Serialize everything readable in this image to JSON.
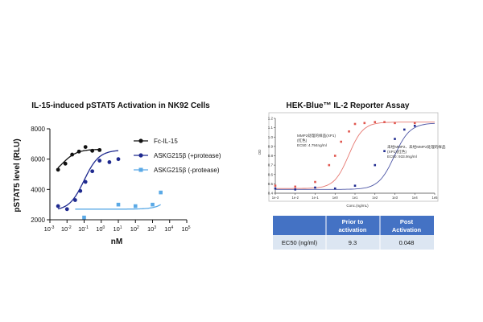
{
  "left_chart": {
    "title": "IL-15-induced pSTAT5 Activation in NK92 Cells",
    "ylabel": "pSTAT5 level (RLU)",
    "xlabel": "nM",
    "y_ticks": [
      "2000",
      "4000",
      "6000",
      "8000"
    ],
    "x_tick_mantissa": "10",
    "x_tick_exponents": [
      "-3",
      "-2",
      "-1",
      "0",
      "1",
      "2",
      "3",
      "4",
      "5"
    ]
  },
  "right_chart": {
    "title": "HEK-Blue™ IL-2 Reporter Assay",
    "ylabel": "OD",
    "xlabel": "Conc.(ng/mL)",
    "y_ticks": [
      "1.2",
      "1.1",
      "1.0",
      "0.9",
      "0.8",
      "0.7",
      "0.6",
      "0.5",
      "0.4"
    ],
    "x_ticks": [
      "1e-3",
      "1e-2",
      "1e-1",
      "1e0",
      "1e1",
      "1e2",
      "1e3",
      "1e4",
      "1e5"
    ],
    "annotation_red": [
      "MMP2处理的样品(XP1)",
      "(红色)",
      "EC50: 4.794ng/ml"
    ],
    "annotation_blue": [
      "未经MMP2、未经MMP2处理的样品",
      "(XP1)(红色)",
      "EC50: 933.9ng/ml"
    ]
  },
  "table": {
    "headers": [
      "",
      "Prior to activation",
      "Post Activation"
    ],
    "row_label": "EC50 (ng/ml)",
    "values": [
      "9.3",
      "0.048"
    ],
    "header_color": "#4472c4",
    "row_color": "#dce6f2"
  },
  "chart_data": [
    {
      "type": "scatter",
      "title": "IL-15-induced pSTAT5 Activation in NK92 Cells",
      "xlabel": "nM",
      "ylabel": "pSTAT5 level (RLU)",
      "x_scale": "log",
      "xlim": [
        0.001,
        100000
      ],
      "ylim": [
        2000,
        8000
      ],
      "legend_position": "right",
      "series": [
        {
          "name": "Fc-IL-15",
          "color": "#111111",
          "x": [
            0.003,
            0.008,
            0.02,
            0.05,
            0.12,
            0.3,
            0.8
          ],
          "y": [
            5300,
            5700,
            6300,
            6500,
            6800,
            6550,
            6600
          ],
          "fit": {
            "bottom": 4700,
            "top": 6650,
            "ec50": 0.005,
            "hill": 1.0,
            "xmin": 0.003,
            "xmax": 1.0
          }
        },
        {
          "name": "ASKG215β (+protease)",
          "color": "#1f2a8f",
          "x": [
            0.003,
            0.01,
            0.03,
            0.06,
            0.12,
            0.3,
            0.8,
            3,
            10
          ],
          "y": [
            2900,
            2700,
            3300,
            3900,
            4500,
            5200,
            5900,
            5800,
            6000
          ],
          "fit": {
            "bottom": 2600,
            "top": 6600,
            "ec50": 0.1,
            "hill": 1.0,
            "xmin": 0.003,
            "xmax": 10
          }
        },
        {
          "name": "ASKG215β (-protease)",
          "color": "#5aa9e6",
          "x": [
            0.1,
            10,
            100,
            1000,
            3000
          ],
          "y": [
            2150,
            3000,
            2900,
            3000,
            3800
          ],
          "fit": {
            "bottom": 2700,
            "top": 8000,
            "ec50": 50000,
            "hill": 1.0,
            "xmin": 0.03,
            "xmax": 3000
          }
        }
      ]
    },
    {
      "type": "scatter",
      "title": "HEK-Blue™ IL-2 Reporter Assay",
      "xlabel": "Conc.(ng/mL)",
      "ylabel": "OD",
      "x_scale": "log",
      "xlim": [
        0.001,
        100000
      ],
      "ylim": [
        0.4,
        1.2
      ],
      "series": [
        {
          "name": "MMP2处理的样品(XP1)",
          "color": "#e0564e",
          "x": [
            0.001,
            0.01,
            0.1,
            0.5,
            1,
            2,
            5,
            10,
            30,
            100,
            300,
            1000,
            10000
          ],
          "y": [
            0.48,
            0.47,
            0.52,
            0.7,
            0.8,
            0.95,
            1.06,
            1.14,
            1.15,
            1.16,
            1.16,
            1.15,
            1.15
          ],
          "fit": {
            "bottom": 0.45,
            "top": 1.16,
            "ec50": 4.794,
            "hill": 1.2
          }
        },
        {
          "name": "未经MMP2处理的样品(XP1)",
          "color": "#1f2a8f",
          "x": [
            0.001,
            0.01,
            0.1,
            1,
            10,
            100,
            300,
            1000,
            3000,
            10000
          ],
          "y": [
            0.45,
            0.44,
            0.46,
            0.45,
            0.48,
            0.7,
            0.85,
            0.98,
            1.08,
            1.12
          ],
          "fit": {
            "bottom": 0.44,
            "top": 1.15,
            "ec50": 933.9,
            "hill": 1.1
          }
        }
      ]
    }
  ]
}
